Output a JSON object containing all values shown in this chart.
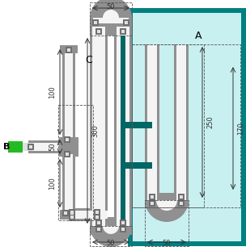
{
  "bg_color": "#ffffff",
  "tank_color": "#008080",
  "tank_fill_color": "#c8f0f0",
  "pipe_gray": "#909090",
  "pipe_light": "#e0e0e0",
  "pipe_white": "#f4f4f4",
  "conn_dark": "#707070",
  "green_color": "#22bb22",
  "teal_dark": "#006666",
  "label_A": "A",
  "label_B": "B",
  "label_C": "C",
  "dim_50": "50",
  "dim_300": "300",
  "dim_250": "250",
  "dim_170": "170",
  "dim_100": "100"
}
